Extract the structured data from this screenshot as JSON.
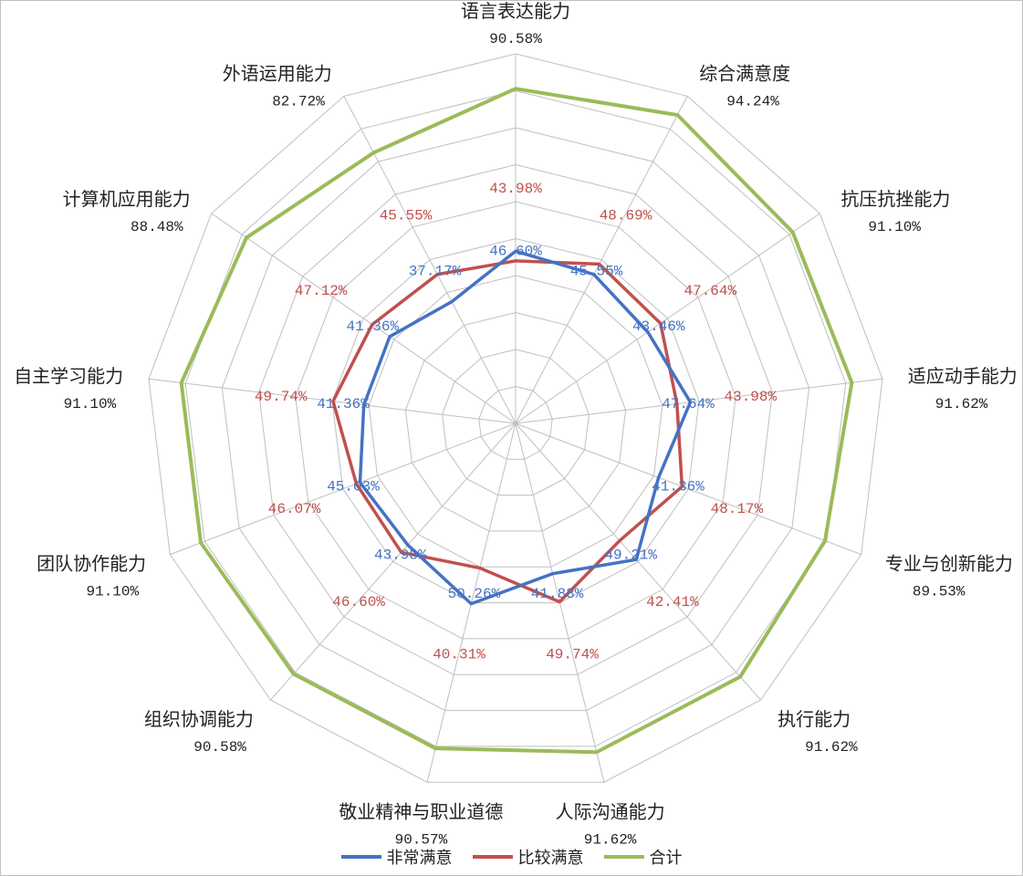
{
  "chart_data": {
    "type": "radar",
    "categories": [
      "语言表达能力",
      "综合满意度",
      "抗压抗挫能力",
      "适应动手能力",
      "专业与创新能力",
      "执行能力",
      "人际沟通能力",
      "敬业精神与职业道德",
      "组织协调能力",
      "团队协作能力",
      "自主学习能力",
      "计算机应用能力",
      "外语运用能力"
    ],
    "rlim": [
      0,
      100
    ],
    "series": [
      {
        "name": "非常满意",
        "color": "#4472C4",
        "values": [
          46.6,
          45.55,
          43.46,
          47.64,
          41.36,
          49.21,
          41.88,
          50.26,
          43.98,
          45.03,
          41.36,
          41.36,
          37.17
        ],
        "labels": [
          "46.60%",
          "45.55%",
          "43.46%",
          "47.64%",
          "41.36%",
          "49.21%",
          "41.88%",
          "50.26%",
          "43.98%",
          "45.03%",
          "41.36%",
          "41.36%",
          "37.17%"
        ]
      },
      {
        "name": "比较满意",
        "color": "#C0504D",
        "values": [
          43.98,
          48.69,
          47.64,
          43.98,
          48.17,
          42.41,
          49.74,
          40.31,
          46.6,
          46.07,
          49.74,
          47.12,
          45.55
        ],
        "labels": [
          "43.98%",
          "48.69%",
          "47.64%",
          "43.98%",
          "48.17%",
          "42.41%",
          "49.74%",
          "40.31%",
          "46.60%",
          "46.07%",
          "49.74%",
          "47.12%",
          "45.55%"
        ]
      },
      {
        "name": "合计",
        "color": "#9BBB59",
        "values": [
          90.58,
          94.24,
          91.1,
          91.62,
          89.53,
          91.62,
          91.62,
          90.57,
          90.58,
          91.1,
          91.1,
          88.48,
          82.72
        ],
        "labels": [
          "90.58%",
          "94.24%",
          "91.10%",
          "91.62%",
          "89.53%",
          "91.62%",
          "91.62%",
          "90.57%",
          "90.58%",
          "91.10%",
          "91.10%",
          "88.48%",
          "82.72%"
        ]
      }
    ],
    "grid": true,
    "legend": "bottom"
  }
}
